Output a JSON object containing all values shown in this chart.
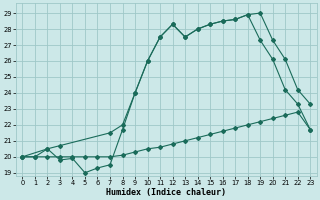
{
  "xlabel": "Humidex (Indice chaleur)",
  "bg_color": "#cce8e8",
  "grid_color": "#9fc8c8",
  "line_color": "#1a6b5a",
  "xlim": [
    -0.5,
    23.5
  ],
  "ylim": [
    18.8,
    29.6
  ],
  "xticks": [
    0,
    1,
    2,
    3,
    4,
    5,
    6,
    7,
    8,
    9,
    10,
    11,
    12,
    13,
    14,
    15,
    16,
    17,
    18,
    19,
    20,
    21,
    22,
    23
  ],
  "yticks": [
    19,
    20,
    21,
    22,
    23,
    24,
    25,
    26,
    27,
    28,
    29
  ],
  "series1_x": [
    0,
    1,
    2,
    3,
    4,
    5,
    6,
    7,
    8,
    9,
    10,
    11,
    12,
    13,
    14,
    15,
    16,
    17,
    18,
    19,
    20,
    21,
    22,
    23
  ],
  "series1_y": [
    20,
    20,
    20.5,
    19.8,
    19.9,
    19.0,
    19.3,
    19.5,
    21.7,
    24.0,
    26.0,
    27.5,
    28.3,
    27.5,
    28.0,
    28.3,
    28.5,
    28.6,
    28.9,
    29.0,
    27.3,
    26.1,
    24.2,
    23.3
  ],
  "series2_x": [
    0,
    1,
    2,
    3,
    4,
    5,
    6,
    7,
    8,
    9,
    10,
    11,
    12,
    13,
    14,
    15,
    16,
    17,
    18,
    19,
    20,
    21,
    22,
    23
  ],
  "series2_y": [
    20,
    20,
    20,
    20,
    20,
    20,
    20,
    20,
    20.1,
    20.3,
    20.5,
    20.6,
    20.8,
    21.0,
    21.2,
    21.4,
    21.6,
    21.8,
    22.0,
    22.2,
    22.4,
    22.6,
    22.8,
    21.7
  ],
  "series3_x": [
    0,
    2,
    3,
    7,
    8,
    9,
    10,
    11,
    12,
    13,
    14,
    15,
    16,
    17,
    18,
    19,
    20,
    21,
    22,
    23
  ],
  "series3_y": [
    20,
    20.5,
    20.7,
    21.5,
    22.0,
    24.0,
    26.0,
    27.5,
    28.3,
    27.5,
    28.0,
    28.3,
    28.5,
    28.6,
    28.9,
    27.3,
    26.1,
    24.2,
    23.3,
    21.7
  ]
}
